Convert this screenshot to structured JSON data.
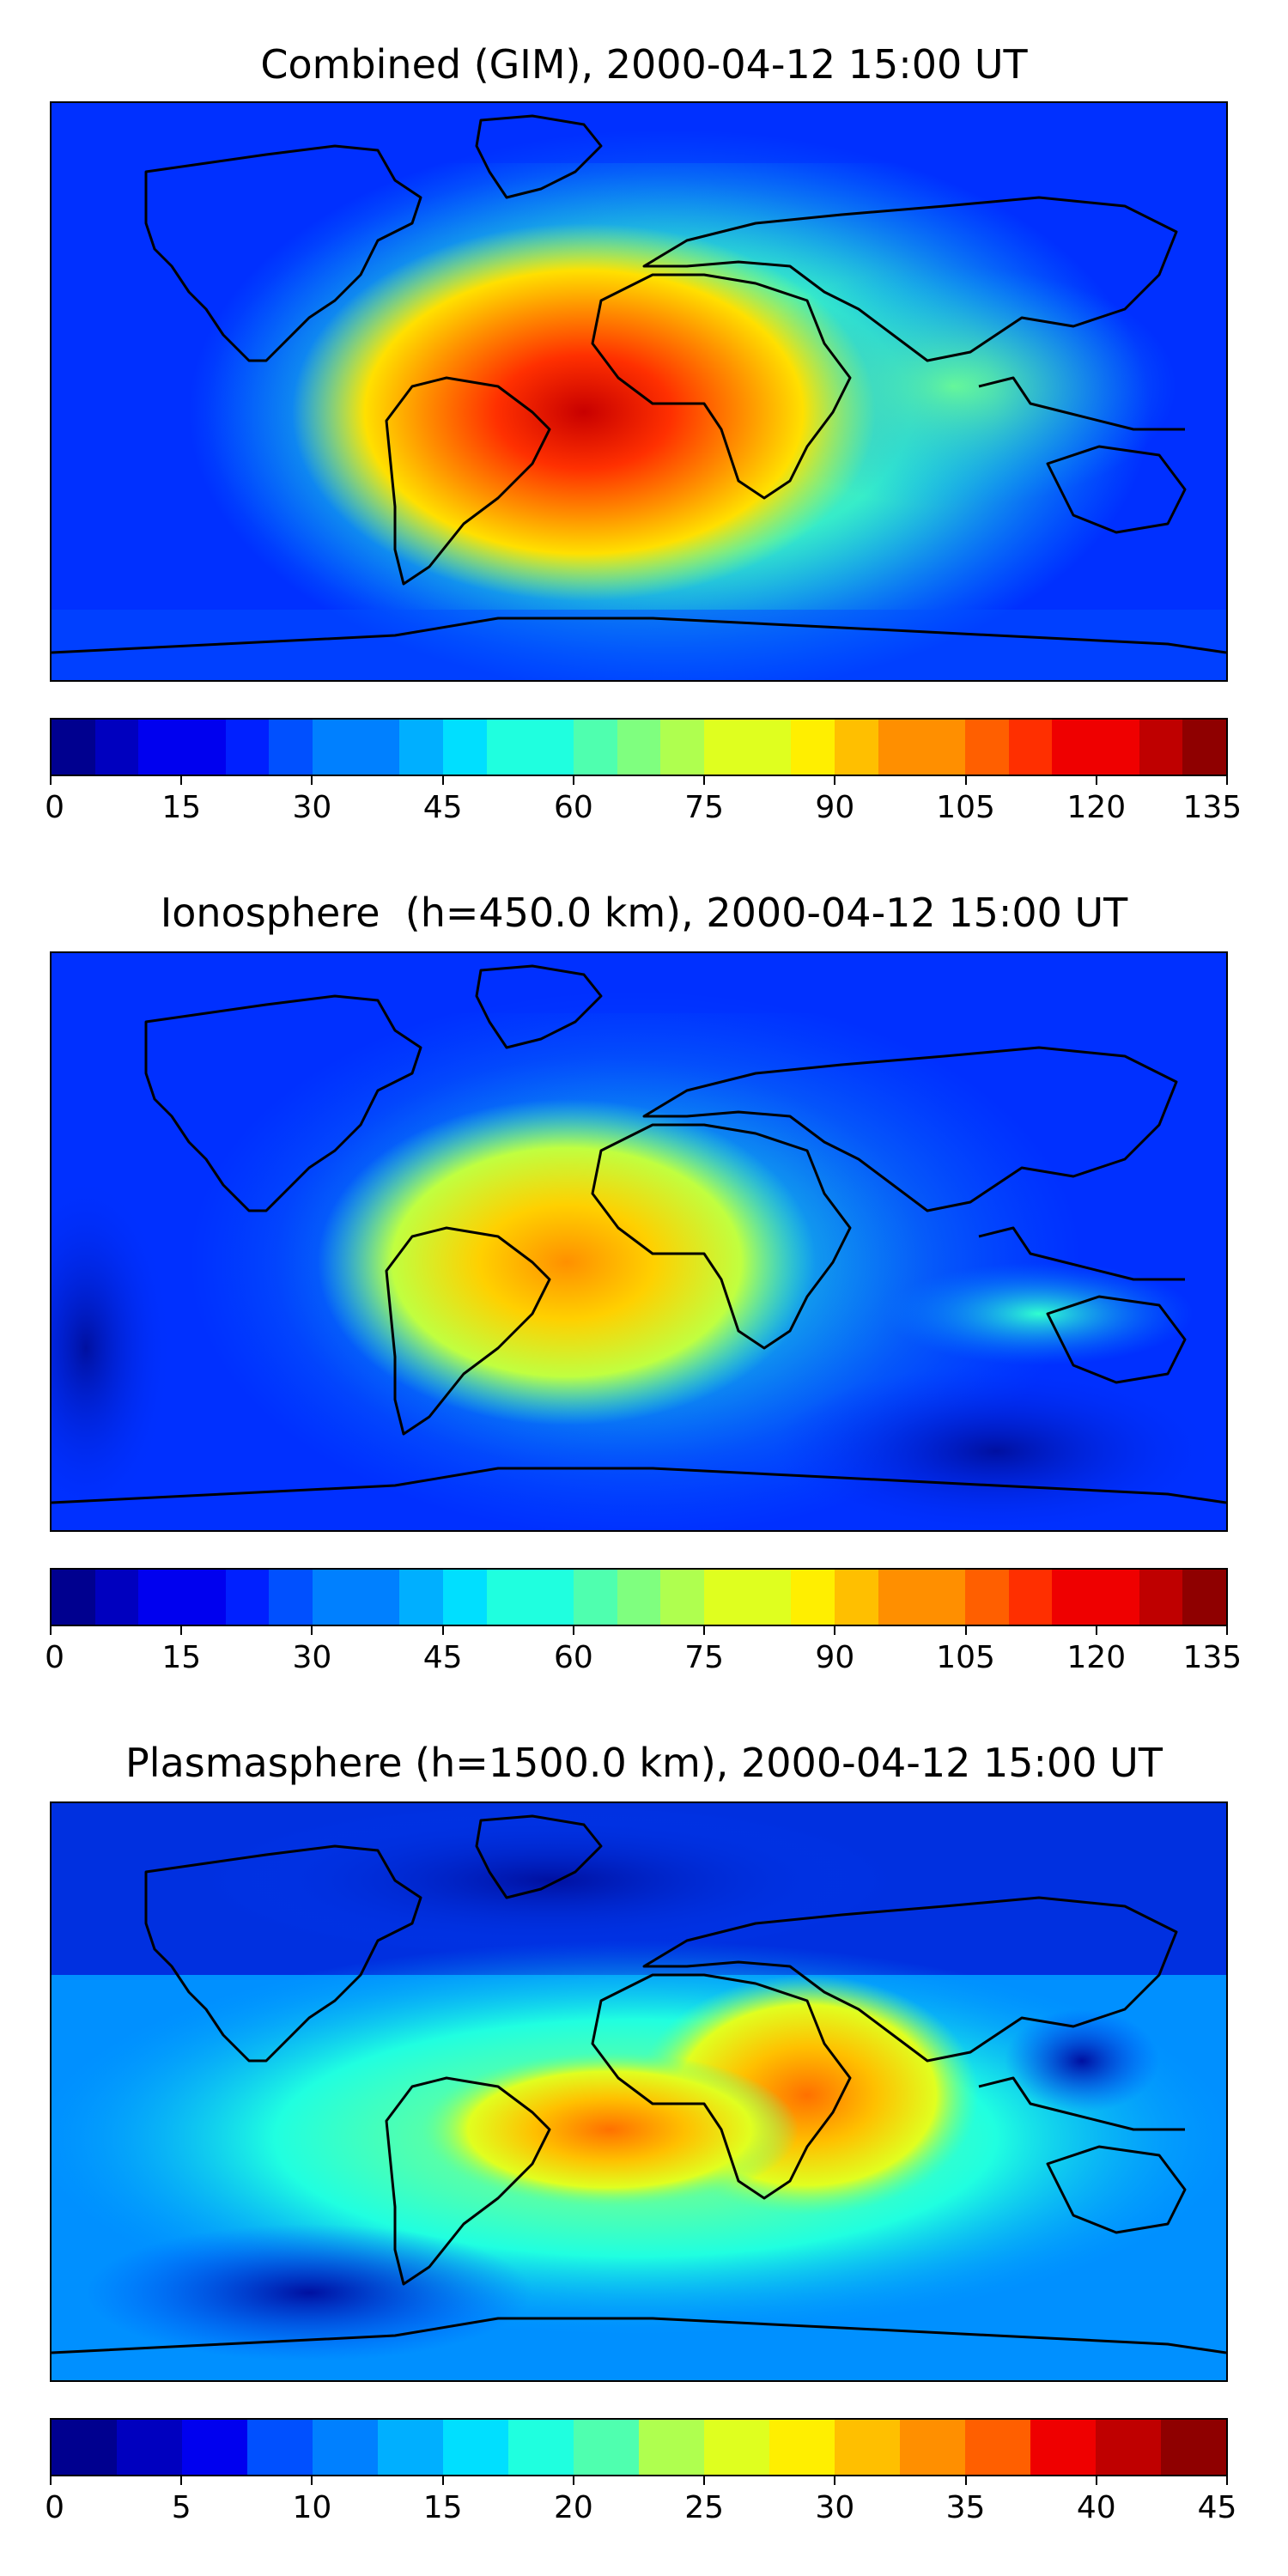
{
  "colormap": [
    "#00008f",
    "#0000bf",
    "#0000ef",
    "#0020ff",
    "#0050ff",
    "#0080ff",
    "#00afff",
    "#00dfff",
    "#1fffdf",
    "#4fffaf",
    "#7fff7f",
    "#afff4f",
    "#dfff1f",
    "#ffef00",
    "#ffbf00",
    "#ff8f00",
    "#ff5f00",
    "#ff2f00",
    "#ef0000",
    "#bf0000",
    "#8f0000"
  ],
  "coastline_color": "#000000",
  "panels": [
    {
      "title": "Combined (GIM), 2000-04-12 15:00 UT",
      "colorbar": {
        "ticks": [
          "0",
          "15",
          "30",
          "45",
          "60",
          "75",
          "90",
          "105",
          "120",
          "135"
        ],
        "min": 0,
        "max": 135,
        "levels": 27
      }
    },
    {
      "title": "Ionosphere  (h=450.0 km), 2000-04-12 15:00 UT",
      "colorbar": {
        "ticks": [
          "0",
          "15",
          "30",
          "45",
          "60",
          "75",
          "90",
          "105",
          "120",
          "135"
        ],
        "min": 0,
        "max": 135,
        "levels": 27
      }
    },
    {
      "title": "Plasmasphere (h=1500.0 km), 2000-04-12 15:00 UT",
      "colorbar": {
        "ticks": [
          "0",
          "5",
          "10",
          "15",
          "20",
          "25",
          "30",
          "35",
          "40",
          "45"
        ],
        "min": 0,
        "max": 45,
        "levels": 18
      }
    }
  ]
}
